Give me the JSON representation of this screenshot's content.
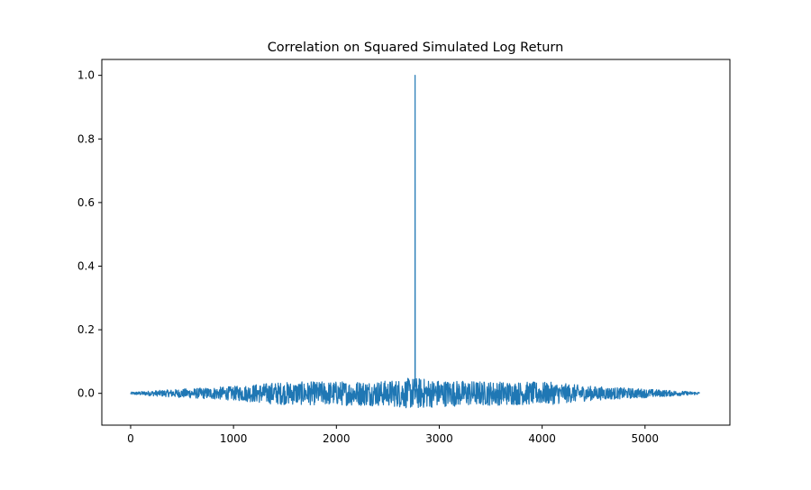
{
  "chart_data": {
    "type": "line",
    "title": "Correlation on Squared Simulated Log Return",
    "xlabel": "",
    "ylabel": "",
    "xlim": [
      -280,
      5825
    ],
    "ylim": [
      -0.1,
      1.05
    ],
    "x_ticks": [
      0,
      1000,
      2000,
      3000,
      4000,
      5000
    ],
    "y_ticks": [
      0.0,
      0.2,
      0.4,
      0.6,
      0.8,
      1.0
    ],
    "x_tick_labels": [
      "0",
      "1000",
      "2000",
      "3000",
      "4000",
      "5000"
    ],
    "y_tick_labels": [
      "0.0",
      "0.2",
      "0.4",
      "0.6",
      "0.8",
      "1.0"
    ],
    "grid": false,
    "legend": "none",
    "series": [
      {
        "color": "#1f77b4",
        "n_points": 5531,
        "peak": {
          "x": 2765,
          "y": 1.0
        },
        "envelope": [
          {
            "x": 0,
            "amp": 0.004
          },
          {
            "x": 500,
            "amp": 0.014
          },
          {
            "x": 1000,
            "amp": 0.022
          },
          {
            "x": 1400,
            "amp": 0.035
          },
          {
            "x": 2000,
            "amp": 0.038
          },
          {
            "x": 2500,
            "amp": 0.04
          },
          {
            "x": 2760,
            "amp": 0.05
          },
          {
            "x": 3000,
            "amp": 0.042
          },
          {
            "x": 3500,
            "amp": 0.038
          },
          {
            "x": 4100,
            "amp": 0.035
          },
          {
            "x": 4500,
            "amp": 0.022
          },
          {
            "x": 5000,
            "amp": 0.014
          },
          {
            "x": 5530,
            "amp": 0.004
          }
        ]
      }
    ]
  }
}
